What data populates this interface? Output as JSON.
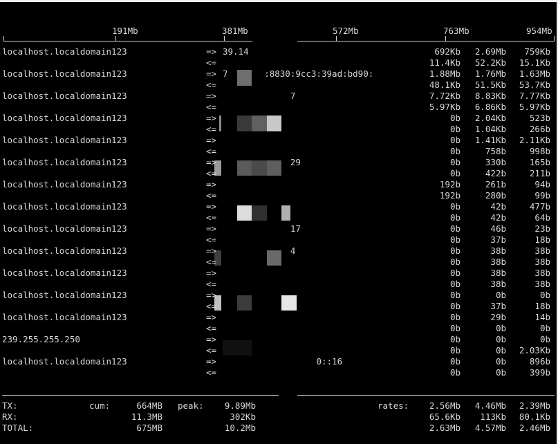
{
  "scale": {
    "labels": [
      "191Mb",
      "381Mb",
      "572Mb",
      "763Mb",
      "954Mb"
    ]
  },
  "hosts": [
    {
      "name": "localhost.localdomain123",
      "tx_arrow": "=>",
      "rx_arrow": "<=",
      "tx_remote": "39.14",
      "rx_remote": "",
      "tx": [
        "692Kb",
        "2.69Mb",
        "759Kb"
      ],
      "rx": [
        "11.4Kb",
        "52.2Kb",
        "15.1Kb"
      ]
    },
    {
      "name": "localhost.localdomain123",
      "tx_arrow": "=>",
      "rx_arrow": "<=",
      "tx_remote": "7       :8830:9cc3:39ad:bd90:",
      "rx_remote": "",
      "tx": [
        "1.88Mb",
        "1.76Mb",
        "1.63Mb"
      ],
      "rx": [
        "48.1Kb",
        "51.5Kb",
        "53.7Kb"
      ]
    },
    {
      "name": "localhost.localdomain123",
      "tx_arrow": "=>",
      "rx_arrow": "<=",
      "tx_remote": "             7",
      "rx_remote": "",
      "tx": [
        "7.72Kb",
        "8.83Kb",
        "7.77Kb"
      ],
      "rx": [
        "5.97Kb",
        "6.86Kb",
        "5.97Kb"
      ]
    },
    {
      "name": "localhost.localdomain123",
      "tx_arrow": "=>",
      "rx_arrow": "<=",
      "tx_remote": "",
      "rx_remote": "",
      "tx": [
        "0b",
        "2.04Kb",
        "523b"
      ],
      "rx": [
        "0b",
        "1.04Kb",
        "266b"
      ]
    },
    {
      "name": "localhost.localdomain123",
      "tx_arrow": "=>",
      "rx_arrow": "<=",
      "tx_remote": "",
      "rx_remote": "",
      "tx": [
        "0b",
        "1.41Kb",
        "2.11Kb"
      ],
      "rx": [
        "0b",
        "758b",
        "998b"
      ]
    },
    {
      "name": "localhost.localdomain123",
      "tx_arrow": "=>",
      "rx_arrow": "<=",
      "tx_remote": "             29",
      "rx_remote": "",
      "tx": [
        "0b",
        "330b",
        "165b"
      ],
      "rx": [
        "0b",
        "422b",
        "211b"
      ]
    },
    {
      "name": "localhost.localdomain123",
      "tx_arrow": "=>",
      "rx_arrow": "<=",
      "tx_remote": "",
      "rx_remote": "",
      "tx": [
        "192b",
        "261b",
        "94b"
      ],
      "rx": [
        "192b",
        "280b",
        "99b"
      ]
    },
    {
      "name": "localhost.localdomain123",
      "tx_arrow": "=>",
      "rx_arrow": "<=",
      "tx_remote": "",
      "rx_remote": "",
      "tx": [
        "0b",
        "42b",
        "477b"
      ],
      "rx": [
        "0b",
        "42b",
        "64b"
      ]
    },
    {
      "name": "localhost.localdomain123",
      "tx_arrow": "=>",
      "rx_arrow": "<=",
      "tx_remote": "             17",
      "rx_remote": "",
      "tx": [
        "0b",
        "46b",
        "23b"
      ],
      "rx": [
        "0b",
        "37b",
        "18b"
      ]
    },
    {
      "name": "localhost.localdomain123",
      "tx_arrow": "=>",
      "rx_arrow": "<=",
      "tx_remote": "             4",
      "rx_remote": "",
      "tx": [
        "0b",
        "38b",
        "38b"
      ],
      "rx": [
        "0b",
        "38b",
        "38b"
      ]
    },
    {
      "name": "localhost.localdomain123",
      "tx_arrow": "=>",
      "rx_arrow": "<=",
      "tx_remote": "",
      "rx_remote": "",
      "tx": [
        "0b",
        "38b",
        "38b"
      ],
      "rx": [
        "0b",
        "38b",
        "38b"
      ]
    },
    {
      "name": "localhost.localdomain123",
      "tx_arrow": "=>",
      "rx_arrow": "<=",
      "tx_remote": "",
      "rx_remote": "",
      "tx": [
        "0b",
        "0b",
        "0b"
      ],
      "rx": [
        "0b",
        "37b",
        "18b"
      ]
    },
    {
      "name": "localhost.localdomain123",
      "tx_arrow": "=>",
      "rx_arrow": "<=",
      "tx_remote": "",
      "rx_remote": "",
      "tx": [
        "0b",
        "29b",
        "14b"
      ],
      "rx": [
        "0b",
        "0b",
        "0b"
      ]
    },
    {
      "name": "239.255.255.250",
      "tx_arrow": "=>",
      "rx_arrow": "<=",
      "tx_remote": "",
      "rx_remote": "",
      "tx": [
        "0b",
        "0b",
        "0b"
      ],
      "rx": [
        "0b",
        "0b",
        "2.03Kb"
      ]
    },
    {
      "name": "localhost.localdomain123",
      "tx_arrow": "=>",
      "rx_arrow": "<=",
      "tx_remote": "                  0::16",
      "rx_remote": "",
      "tx": [
        "0b",
        "0b",
        "896b"
      ],
      "rx": [
        "0b",
        "0b",
        "399b"
      ]
    }
  ],
  "footer": {
    "tx_label": "TX:",
    "rx_label": "RX:",
    "total_label": "TOTAL:",
    "cum_label": "cum:",
    "peak_label": "peak:",
    "rates_label": "rates:",
    "tx_cum": "664MB",
    "rx_cum": "11.3MB",
    "total_cum": "675MB",
    "tx_peak": "9.89Mb",
    "rx_peak": "302Kb",
    "total_peak": "10.2Mb",
    "tx_rates": [
      "2.56Mb",
      "4.46Mb",
      "2.39Mb"
    ],
    "rx_rates": [
      "65.6Kb",
      "113Kb",
      "80.1Kb"
    ],
    "total_rates": [
      "2.63Mb",
      "4.57Mb",
      "2.46Mb"
    ]
  },
  "colors": {
    "background": "#000000",
    "text": "#d8d8d8",
    "rule": "#cfcfcf"
  }
}
